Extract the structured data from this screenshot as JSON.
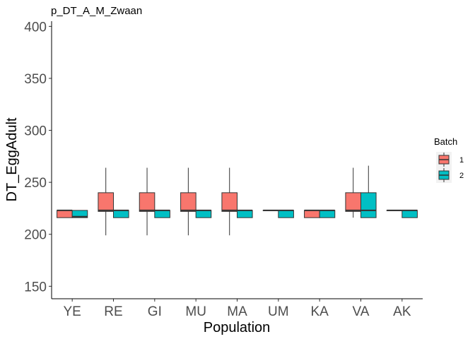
{
  "chart_data": {
    "type": "boxplot",
    "title": "p_DT_A_M_Zwaan",
    "xlabel": "Population",
    "ylabel": "DT_EggAdult",
    "ylim": [
      138,
      405
    ],
    "yticks": [
      150,
      200,
      250,
      300,
      350,
      400
    ],
    "categories": [
      "YE",
      "RE",
      "GI",
      "MU",
      "MA",
      "UM",
      "KA",
      "VA",
      "AK"
    ],
    "legend": {
      "title": "Batch",
      "position": "right"
    },
    "series": [
      {
        "name": "1",
        "color": "#F8766D",
        "boxes": [
          {
            "min": 216,
            "q1": 216,
            "median": 223,
            "q3": 223,
            "max": 223
          },
          {
            "min": 199,
            "q1": 222,
            "median": 223,
            "q3": 240,
            "max": 264
          },
          {
            "min": 199,
            "q1": 222,
            "median": 223,
            "q3": 240,
            "max": 264
          },
          {
            "min": 199,
            "q1": 222,
            "median": 223,
            "q3": 240,
            "max": 264
          },
          {
            "min": 199,
            "q1": 222,
            "median": 223,
            "q3": 240,
            "max": 264
          },
          {
            "min": 223,
            "q1": 223,
            "median": 223,
            "q3": 223,
            "max": 223
          },
          {
            "min": 216,
            "q1": 216,
            "median": 223,
            "q3": 223,
            "max": 223
          },
          {
            "min": 216,
            "q1": 222,
            "median": 223,
            "q3": 240,
            "max": 264
          },
          {
            "min": 223,
            "q1": 223,
            "median": 223,
            "q3": 223,
            "max": 223
          }
        ]
      },
      {
        "name": "2",
        "color": "#00BFC4",
        "boxes": [
          {
            "min": 216,
            "q1": 216,
            "median": 217,
            "q3": 223,
            "max": 223
          },
          {
            "min": 216,
            "q1": 216,
            "median": 223,
            "q3": 223,
            "max": 223
          },
          {
            "min": 216,
            "q1": 216,
            "median": 223,
            "q3": 223,
            "max": 223
          },
          {
            "min": 216,
            "q1": 216,
            "median": 223,
            "q3": 223,
            "max": 223
          },
          {
            "min": 216,
            "q1": 216,
            "median": 223,
            "q3": 223,
            "max": 223
          },
          {
            "min": 216,
            "q1": 216,
            "median": 223,
            "q3": 223,
            "max": 223
          },
          {
            "min": 216,
            "q1": 216,
            "median": 223,
            "q3": 223,
            "max": 223
          },
          {
            "min": 216,
            "q1": 216,
            "median": 223,
            "q3": 240,
            "max": 266
          },
          {
            "min": 216,
            "q1": 216,
            "median": 223,
            "q3": 223,
            "max": 223
          }
        ]
      }
    ]
  }
}
